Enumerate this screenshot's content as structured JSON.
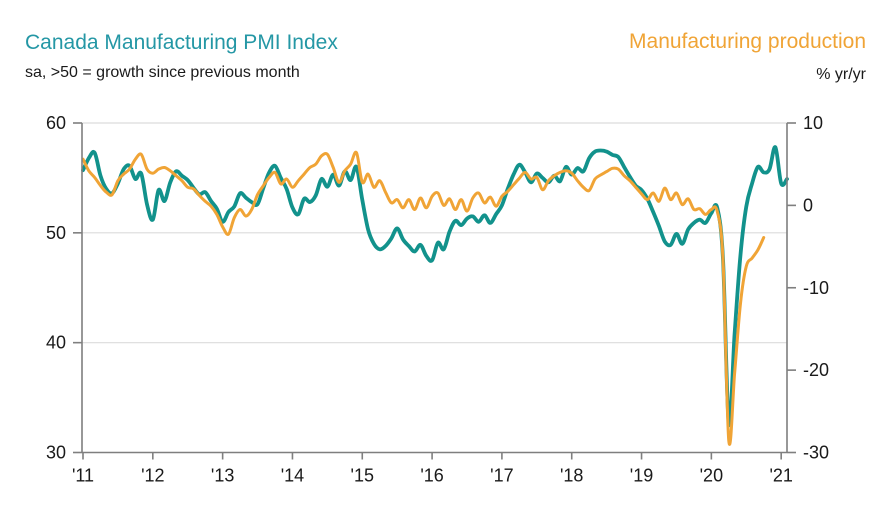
{
  "header": {
    "left_title": "Canada Manufacturing PMI Index",
    "left_subtitle": "sa, >50 = growth since previous month",
    "right_title": "Manufacturing production",
    "right_subtitle": "% yr/yr"
  },
  "colors": {
    "teal_title": "#2497A5",
    "teal_line": "#12928C",
    "orange_title": "#F0A436",
    "orange_line": "#F0A436",
    "axis": "#7F7F7F",
    "grid": "#DCDCDC",
    "text": "#1A1A1A"
  },
  "chart_data": {
    "type": "line",
    "frequency": "monthly",
    "start_year": 2011,
    "x_tick_labels": [
      "'11",
      "'12",
      "'13",
      "'14",
      "'15",
      "'16",
      "'17",
      "'18",
      "'19",
      "'20",
      "'21"
    ],
    "left_axis": {
      "label": "Canada Manufacturing PMI Index",
      "min": 30,
      "max": 60,
      "tick_values": [
        60,
        50,
        40,
        30
      ],
      "tick_labels": [
        "60",
        "50",
        "40",
        "30"
      ]
    },
    "right_axis": {
      "label": "Manufacturing production, % yr/yr",
      "min": -30,
      "max": 10,
      "tick_values": [
        10,
        0,
        -10,
        -20,
        -30
      ],
      "tick_labels": [
        "10",
        "0",
        "-10",
        "-20",
        "-30"
      ]
    },
    "gridlines_left_values": [
      50,
      40
    ],
    "legend_position": "titles-above-chart",
    "grid": "horizontal-only",
    "series": [
      {
        "id": "pmi",
        "name": "Canada Manufacturing PMI Index",
        "axis": "left",
        "color_key": "teal_line",
        "stroke_width": 3.8,
        "start": "2011-01",
        "end": "2021-02",
        "values": [
          55.7,
          56.8,
          57.3,
          55.2,
          54.0,
          53.6,
          54.5,
          55.8,
          56.1,
          54.9,
          55.4,
          52.6,
          51.2,
          53.9,
          52.9,
          54.6,
          55.6,
          55.2,
          54.8,
          54.1,
          53.5,
          53.7,
          52.9,
          52.2,
          51.0,
          51.9,
          52.4,
          53.6,
          53.2,
          52.8,
          52.6,
          54.1,
          55.5,
          56.1,
          55.0,
          54.0,
          52.3,
          51.7,
          53.1,
          52.8,
          53.4,
          54.9,
          54.2,
          55.3,
          54.3,
          55.6,
          54.8,
          56.0,
          53.0,
          50.3,
          49.0,
          48.5,
          48.8,
          49.5,
          50.4,
          49.4,
          48.8,
          48.3,
          48.9,
          47.9,
          47.5,
          49.1,
          48.5,
          50.1,
          51.1,
          50.7,
          51.3,
          51.5,
          51.0,
          51.6,
          50.9,
          51.7,
          52.5,
          54.0,
          55.3,
          56.2,
          55.5,
          54.6,
          55.4,
          55.0,
          54.6,
          55.2,
          54.7,
          56.0,
          55.3,
          55.9,
          55.6,
          56.8,
          57.4,
          57.5,
          57.4,
          57.1,
          56.9,
          56.0,
          55.1,
          54.3,
          53.9,
          53.1,
          51.9,
          50.6,
          49.2,
          48.9,
          49.9,
          49.0,
          50.3,
          50.9,
          51.2,
          50.9,
          51.8,
          52.3,
          47.6,
          32.6,
          40.8,
          48.0,
          52.4,
          54.5,
          56.0,
          55.5,
          55.8,
          57.8,
          54.5,
          54.9
        ]
      },
      {
        "id": "production",
        "name": "Manufacturing production",
        "axis": "right",
        "color_key": "orange_line",
        "stroke_width": 3.0,
        "start": "2011-01",
        "end": "2020-10",
        "values": [
          5.6,
          4.2,
          3.4,
          2.4,
          1.6,
          1.3,
          3.0,
          3.8,
          4.4,
          5.6,
          6.2,
          4.4,
          3.9,
          4.4,
          4.6,
          4.2,
          3.6,
          3.0,
          2.2,
          2.0,
          1.2,
          0.5,
          -0.1,
          -1.1,
          -2.6,
          -3.5,
          -1.5,
          -0.5,
          -1.3,
          -0.5,
          1.3,
          2.4,
          3.4,
          4.0,
          2.6,
          3.2,
          2.2,
          3.0,
          3.8,
          4.6,
          5.0,
          6.0,
          6.2,
          4.6,
          2.8,
          4.2,
          5.0,
          6.4,
          2.8,
          3.8,
          2.2,
          3.0,
          1.6,
          0.3,
          0.7,
          -0.3,
          0.7,
          -0.5,
          0.9,
          -0.3,
          1.1,
          1.5,
          0.0,
          0.8,
          -0.5,
          0.7,
          -0.7,
          0.9,
          1.5,
          0.3,
          1.0,
          -0.1,
          1.1,
          1.7,
          2.5,
          3.3,
          4.0,
          3.2,
          3.4,
          1.9,
          3.0,
          3.6,
          4.0,
          4.2,
          3.9,
          3.0,
          2.2,
          1.8,
          3.2,
          3.7,
          4.1,
          4.5,
          4.4,
          3.6,
          3.0,
          2.2,
          1.4,
          0.7,
          1.5,
          0.5,
          2.1,
          0.7,
          1.5,
          0.1,
          0.8,
          -0.5,
          -0.4,
          -1.1,
          -0.5,
          -0.7,
          -6.6,
          -28.6,
          -20.4,
          -11.9,
          -7.4,
          -6.4,
          -5.4,
          -3.9
        ]
      }
    ]
  }
}
